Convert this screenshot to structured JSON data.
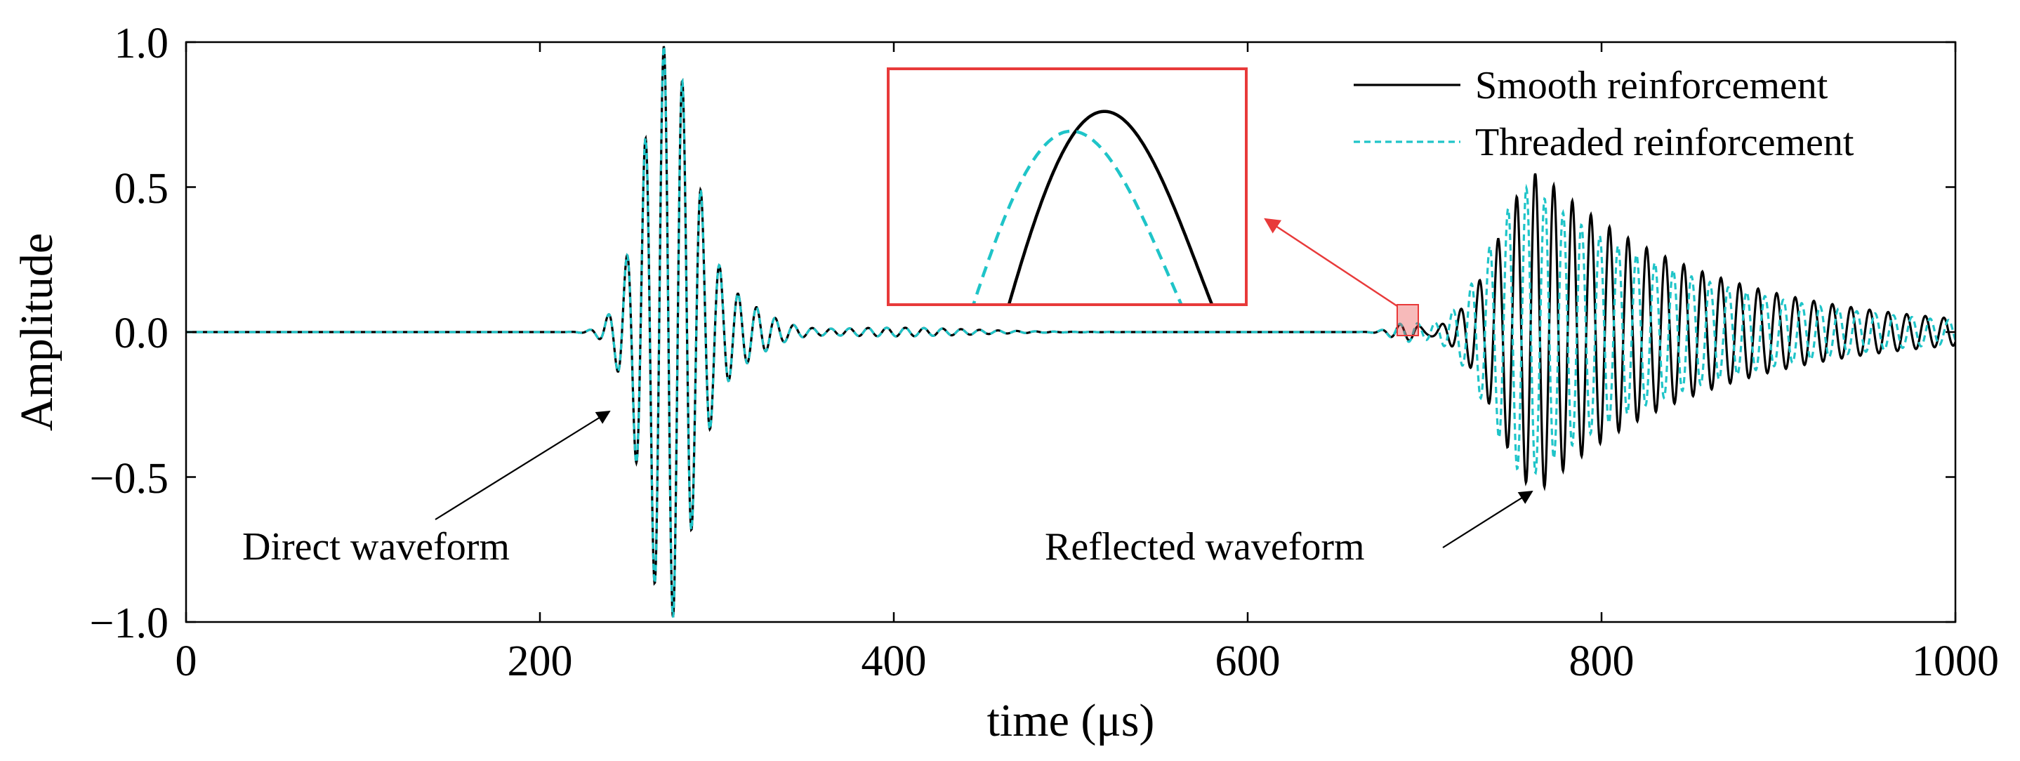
{
  "chart_data": {
    "type": "line",
    "title": "",
    "xlabel": "time (μs)",
    "ylabel": "Amplitude",
    "xlim": [
      0,
      1000
    ],
    "ylim": [
      -1.0,
      1.0
    ],
    "x_ticks": [
      0,
      200,
      400,
      600,
      800,
      1000
    ],
    "x_tick_labels": [
      "0",
      "200",
      "400",
      "600",
      "800",
      "1000"
    ],
    "y_ticks": [
      1.0,
      0.5,
      0.0,
      -0.5,
      -1.0
    ],
    "y_tick_labels": [
      "1.0",
      "0.5",
      "0.0",
      "−0.5",
      "−1.0"
    ],
    "grid": false,
    "legend_position": "top-right",
    "series": [
      {
        "name": "Smooth reinforcement",
        "color": "#000000",
        "style": "solid",
        "signal": "dual tone-burst: direct waveform centred near 272 μs (peak ≈ 0.96), reflected waveform centred near 765 μs (peak ≈ 0.55), carrier period ≈ 10.5 μs"
      },
      {
        "name": "Threaded reinforcement",
        "color": "#1fc4c8",
        "style": "dashed",
        "signal": "nearly identical to smooth case; direct peak ≈ −0.96 near 273 μs, reflected waveform slightly earlier and smaller (peak ≈ 0.50)"
      }
    ],
    "annotations": [
      {
        "text": "Direct waveform",
        "points_to": {
          "x": 243,
          "y": -0.28
        }
      },
      {
        "text": "Reflected waveform",
        "points_to": {
          "x": 760,
          "y": -0.55
        }
      }
    ],
    "inset": {
      "description": "zoom of region near t ≈ 690 μs",
      "zoom_region": {
        "x0": 686,
        "x1": 698,
        "y0": -0.03,
        "y1": 0.1
      },
      "color": "#e83a3a"
    }
  }
}
